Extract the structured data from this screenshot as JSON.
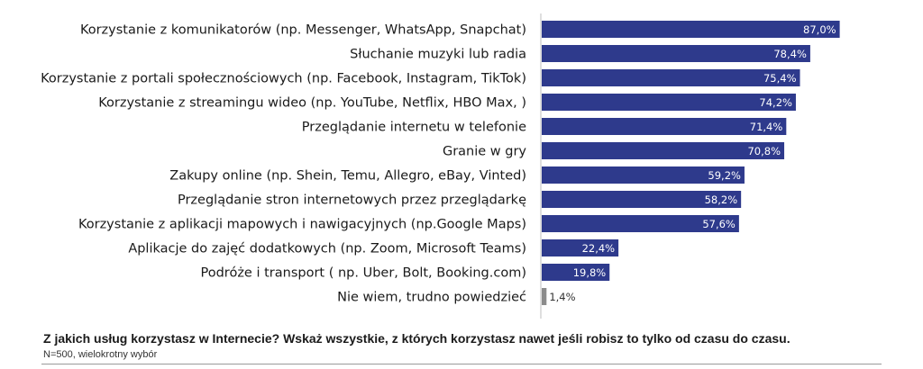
{
  "chart_data": {
    "type": "bar",
    "orientation": "horizontal",
    "categories": [
      "Korzystanie z komunikatorów (np. Messenger, WhatsApp, Snapchat)",
      "Słuchanie muzyki lub radia",
      "Korzystanie z portali społecznościowych (np. Facebook, Instagram, TikTok)",
      "Korzystanie z streamingu wideo (np. YouTube, Netflix, HBO Max, )",
      "Przeglądanie internetu w telefonie",
      "Granie w gry",
      "Zakupy online (np. Shein, Temu, Allegro, eBay, Vinted)",
      "Przeglądanie stron internetowych przez przeglądarkę",
      "Korzystanie z aplikacji mapowych i nawigacyjnych (np.Google Maps)",
      "Aplikacje do zajęć dodatkowych (np. Zoom, Microsoft Teams)",
      "Podróże i transport ( np. Uber, Bolt, Booking.com)",
      "Nie wiem, trudno powiedzieć"
    ],
    "values": [
      87.0,
      78.4,
      75.4,
      74.2,
      71.4,
      70.8,
      59.2,
      58.2,
      57.6,
      22.4,
      19.8,
      1.4
    ],
    "value_labels": [
      "87,0%",
      "78,4%",
      "75,4%",
      "74,2%",
      "71,4%",
      "70,8%",
      "59,2%",
      "58,2%",
      "57,6%",
      "22,4%",
      "19,8%",
      "1,4%"
    ],
    "bar_colors": [
      "#2e3a8c",
      "#2e3a8c",
      "#2e3a8c",
      "#2e3a8c",
      "#2e3a8c",
      "#2e3a8c",
      "#2e3a8c",
      "#2e3a8c",
      "#2e3a8c",
      "#2e3a8c",
      "#2e3a8c",
      "#8c8c8c"
    ],
    "xlim": [
      0,
      100
    ],
    "grid": false,
    "legend": "none",
    "title": "Z jakich usług korzystasz w Internecie? Wskaż wszystkie, z których korzystasz nawet jeśli robisz to tylko od czasu do czasu.",
    "subtitle": "N=500, wielokrotny wybór"
  }
}
